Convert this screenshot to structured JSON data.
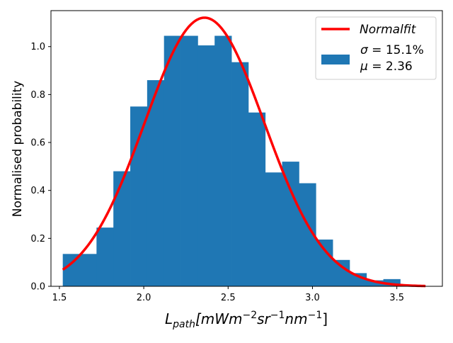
{
  "chart_data": {
    "type": "bar",
    "subtype": "histogram-with-fit",
    "xlabel": "L_path [mWm^-2 sr^-1 nm^-1]",
    "xlabel_parts": {
      "main": "L",
      "sub": "path",
      "units_prefix": "[mWm",
      "exp1": "−2",
      "mid1": "sr",
      "exp2": "−1",
      "mid2": "nm",
      "exp3": "−1",
      "suffix": "]"
    },
    "ylabel": "Normalised probability",
    "xlim": [
      1.45,
      3.77
    ],
    "ylim": [
      0,
      1.15
    ],
    "xticks": [
      "1.5",
      "2.0",
      "2.5",
      "3.0",
      "3.5"
    ],
    "xtick_values": [
      1.5,
      2.0,
      2.5,
      3.0,
      3.5
    ],
    "yticks": [
      "0.0",
      "0.2",
      "0.4",
      "0.6",
      "0.8",
      "1.0"
    ],
    "ytick_values": [
      0.0,
      0.2,
      0.4,
      0.6,
      0.8,
      1.0
    ],
    "bins": {
      "edges": [
        1.52,
        1.62,
        1.72,
        1.82,
        1.92,
        2.02,
        2.12,
        2.22,
        2.32,
        2.42,
        2.52,
        2.62,
        2.72,
        2.82,
        2.92,
        3.02,
        3.12,
        3.22,
        3.32,
        3.42,
        3.52,
        3.62
      ],
      "values": [
        0.135,
        0.135,
        0.245,
        0.48,
        0.75,
        0.86,
        1.045,
        1.045,
        1.005,
        1.045,
        0.935,
        0.725,
        0.475,
        0.52,
        0.43,
        0.195,
        0.11,
        0.055,
        0.025,
        0.03,
        0.005
      ]
    },
    "fit": {
      "name": "Normalfit",
      "mu": 2.36,
      "sigma_abs": 0.356,
      "x_range": [
        1.52,
        3.67
      ],
      "color": "#ff0000"
    },
    "series": [
      {
        "name": "Normalfit",
        "color": "#ff0000"
      },
      {
        "name": "σ = 15.1% μ = 2.36",
        "color": "#1f77b4"
      }
    ],
    "legend": {
      "position": "top-right",
      "fit_label": "Normalfit",
      "hist_line1_symbol": "σ",
      "hist_line1_value": " = 15.1%",
      "hist_line2_symbol": "μ",
      "hist_line2_value": " = 2.36"
    },
    "colors": {
      "bars": "#1f77b4",
      "fit": "#ff0000"
    },
    "grid": false
  }
}
